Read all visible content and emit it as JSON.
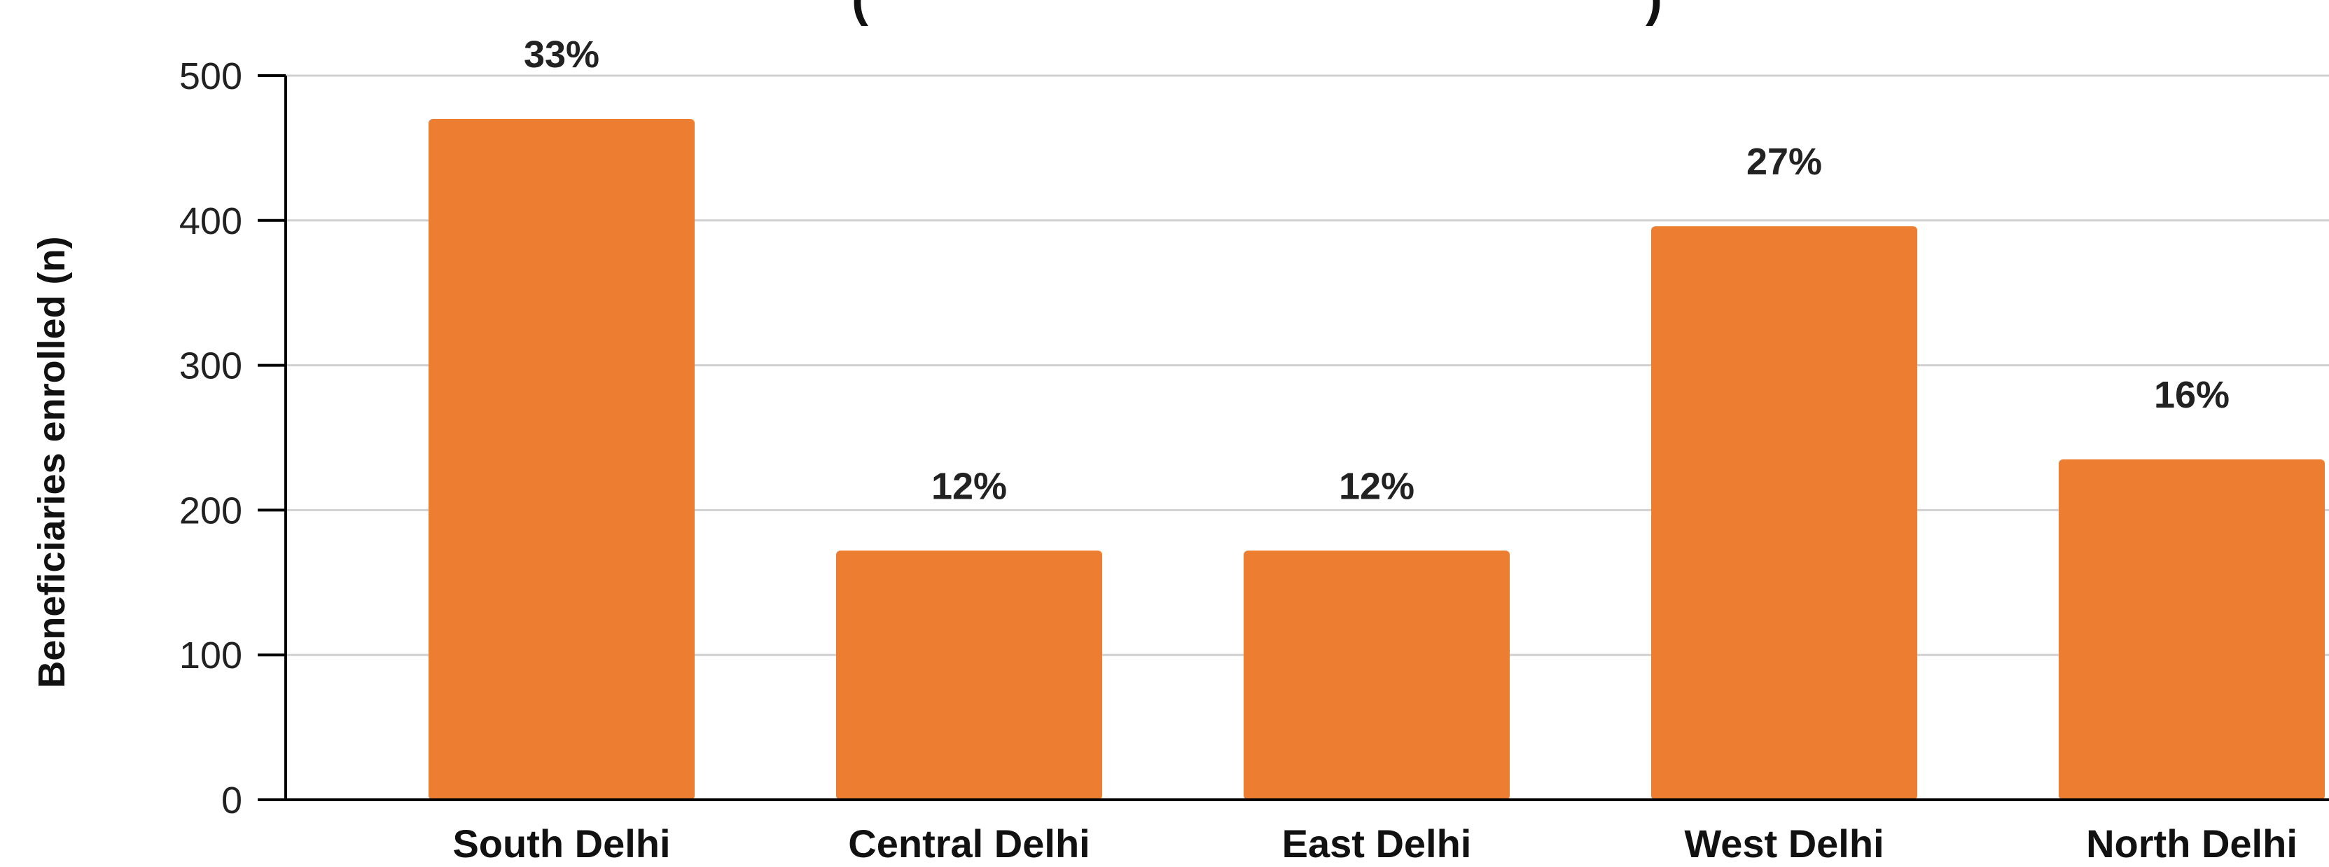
{
  "chart_data": {
    "type": "bar",
    "title_fragments": [
      "(",
      ")"
    ],
    "ylabel": "Beneficiaries enrolled (n)",
    "xlabel": "",
    "categories": [
      "South Delhi",
      "Central Delhi",
      "East Delhi",
      "West Delhi",
      "North Delhi"
    ],
    "values": [
      470,
      172,
      172,
      396,
      235
    ],
    "data_labels": [
      "33%",
      "12%",
      "12%",
      "27%",
      "16%"
    ],
    "ylim": [
      0,
      500
    ],
    "yticks": [
      0,
      100,
      200,
      300,
      400,
      500
    ],
    "grid": true,
    "legend": "none",
    "bar_color": "#ED7D31",
    "gridline_color": "#D0D0D0"
  }
}
